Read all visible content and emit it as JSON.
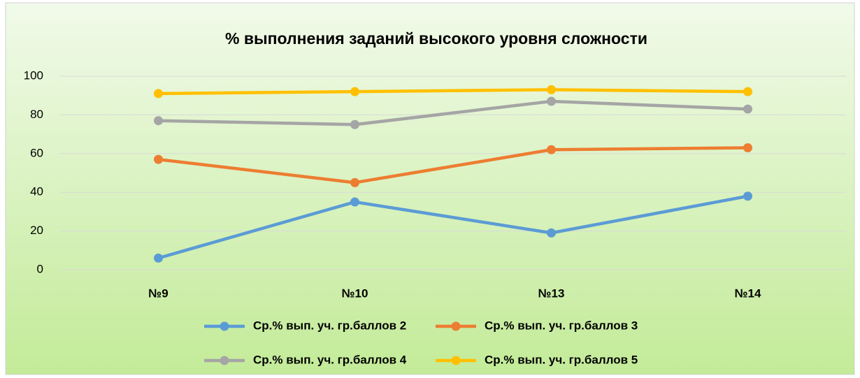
{
  "chart_data": {
    "type": "line",
    "title": "% выполнения заданий высокого уровня сложности",
    "categories": [
      "№9",
      "№10",
      "№13",
      "№14"
    ],
    "series": [
      {
        "name": "Ср.% вып. уч. гр.баллов 2",
        "color": "#5b9bd5",
        "values": [
          6,
          35,
          19,
          38
        ]
      },
      {
        "name": "Ср.% вып. уч. гр.баллов 3",
        "color": "#ed7d31",
        "values": [
          57,
          45,
          62,
          63
        ]
      },
      {
        "name": "Ср.% вып. уч. гр.баллов 4",
        "color": "#a5a5a5",
        "values": [
          77,
          75,
          87,
          83
        ]
      },
      {
        "name": "Ср.% вып. уч. гр.баллов 5",
        "color": "#ffc000",
        "values": [
          91,
          92,
          93,
          92
        ]
      }
    ],
    "ylim": [
      0,
      100
    ],
    "yticks": [
      0,
      20,
      40,
      60,
      80,
      100
    ],
    "grid": true,
    "legend": "bottom"
  }
}
